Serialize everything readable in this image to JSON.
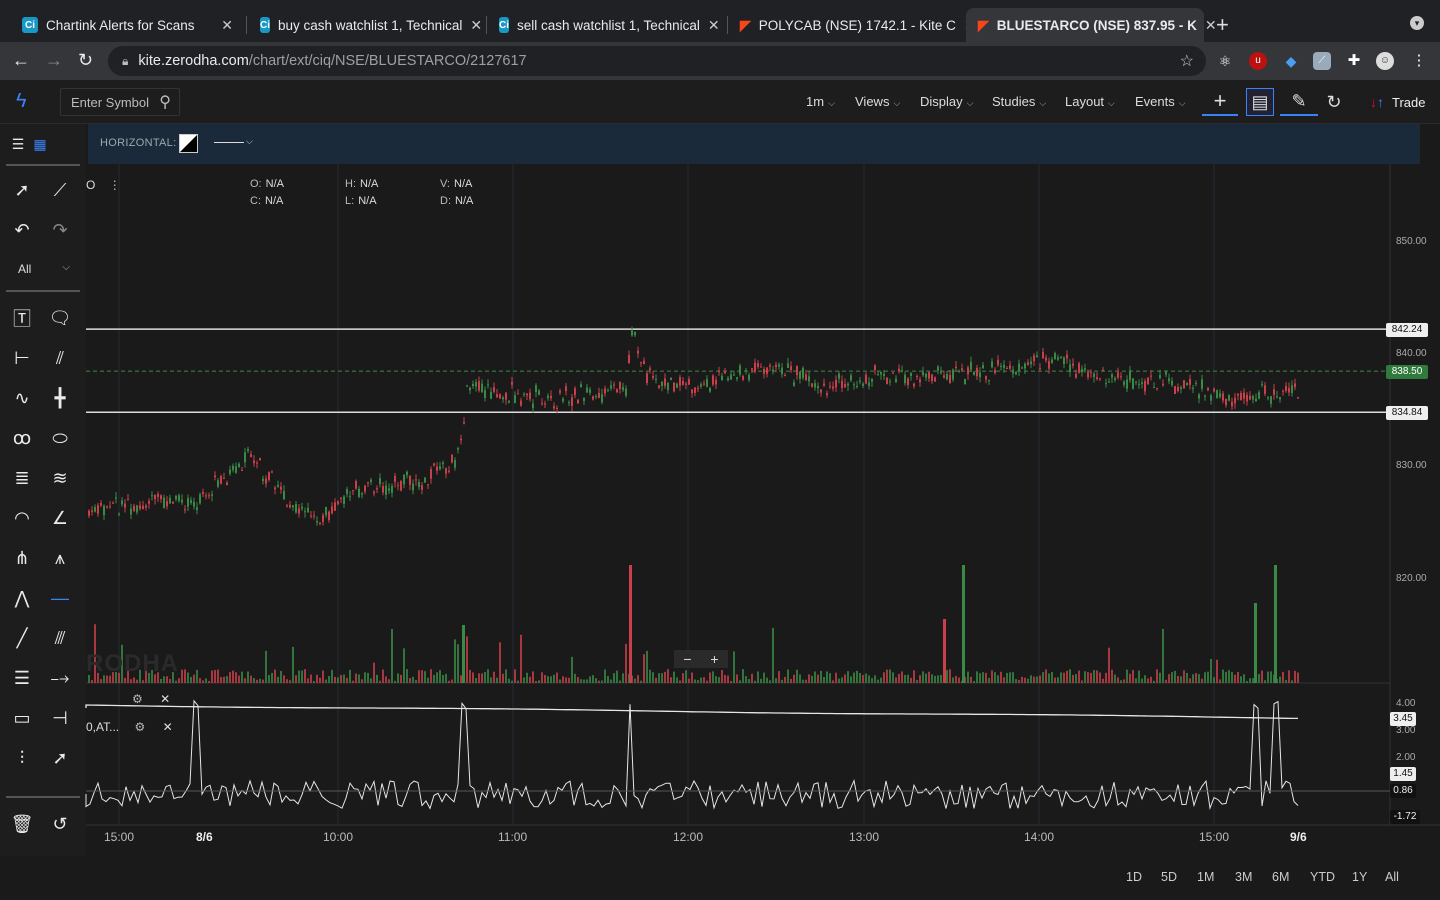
{
  "browser": {
    "tabs": [
      {
        "title": "Chartink Alerts for Scans",
        "icon": "chartink-icon"
      },
      {
        "title": "buy cash watchlist 1, Technical",
        "icon": "chartink-icon"
      },
      {
        "title": "sell cash watchlist 1, Technical",
        "icon": "chartink-icon"
      },
      {
        "title": "POLYCAB (NSE) 1742.1 - Kite C",
        "icon": "kite-icon"
      },
      {
        "title": "BLUESTARCO (NSE) 837.95 - K",
        "icon": "kite-icon",
        "active": true
      }
    ],
    "url_host": "kite.zerodha.com",
    "url_path": "/chart/ext/ciq/NSE/BLUESTARCO/2127617"
  },
  "toolbar": {
    "symbol_placeholder": "Enter Symbol",
    "interval": "1m",
    "menus": [
      "Views",
      "Display",
      "Studies",
      "Layout",
      "Events"
    ],
    "trade_label": "Trade"
  },
  "left_tools": {
    "filter_label": "All"
  },
  "drawing_bar": {
    "label": "HORIZONTAL:"
  },
  "chart": {
    "ohlc": {
      "o_label": "O:",
      "o_value": "N/A",
      "c_label": "C:",
      "c_value": "N/A",
      "h_label": "H:",
      "h_value": "N/A",
      "l_label": "L:",
      "l_value": "N/A",
      "v_label": "V:",
      "v_value": "N/A",
      "d_label": "D:",
      "d_value": "N/A"
    },
    "panel_label_main": "O",
    "study_label": "0,AT...",
    "price_axis": [
      "850.00",
      "840.00",
      "830.00",
      "820.00"
    ],
    "flags": {
      "upper_line": "842.24",
      "last_price": "838.50",
      "lower_line": "834.84"
    },
    "indicator_axis": [
      "4.00",
      "3.00",
      "2.00"
    ],
    "indicator_flags": [
      "3.45",
      "1.45",
      "0.86",
      "-1.72"
    ],
    "x_axis": [
      "15:00",
      "8/6",
      "10:00",
      "11:00",
      "12:00",
      "13:00",
      "14:00",
      "15:00",
      "9/6"
    ],
    "ranges": [
      "1D",
      "5D",
      "1M",
      "3M",
      "6M",
      "YTD",
      "1Y",
      "All"
    ],
    "watermark": "RODHA",
    "colors": {
      "up": "#3a8a45",
      "down": "#c9404a",
      "line": "#e6e6e6"
    }
  }
}
